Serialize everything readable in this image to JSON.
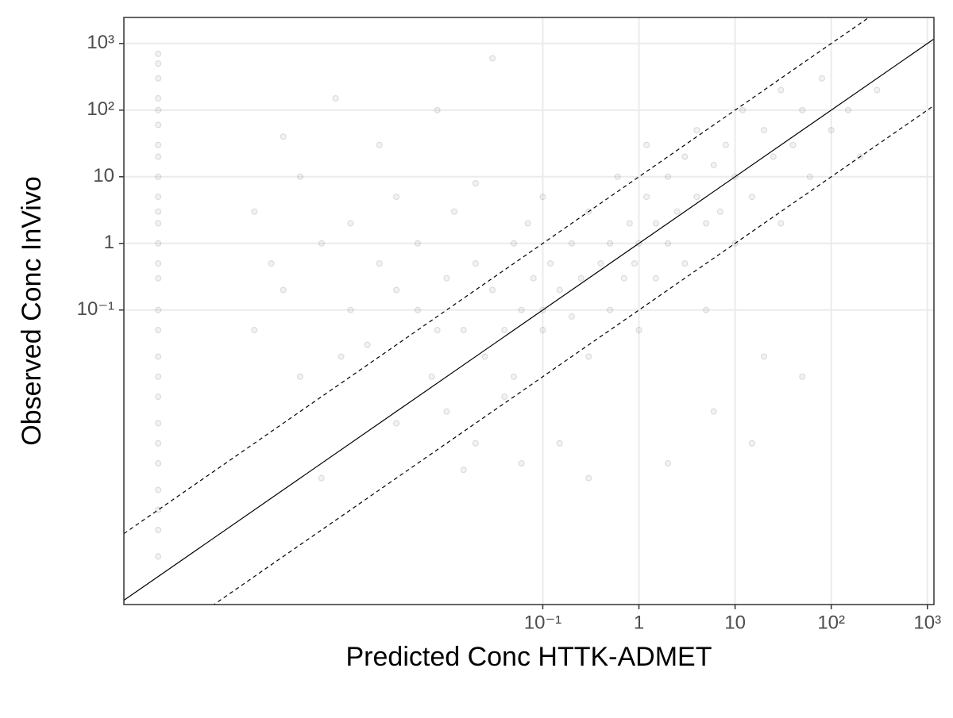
{
  "chart_data": {
    "type": "scatter",
    "x_label": "Predicted Conc HTTK-ADMET",
    "y_label": "Observed Conc InVivo",
    "log_x": true,
    "log_y": true,
    "grid": true,
    "color": "#555555",
    "xlim": [
      4.4e-06,
      1170
    ],
    "ylim": [
      3.8e-06,
      2460
    ],
    "xticks": [
      {
        "value": 0.1,
        "label": "10⁻¹"
      },
      1,
      10,
      {
        "value": 100,
        "label": "10²"
      },
      {
        "value": 1000,
        "label": "10³"
      }
    ],
    "yticks": [
      {
        "value": 0.1,
        "label": "10⁻¹"
      },
      1,
      10,
      {
        "value": 100,
        "label": "10²"
      },
      {
        "value": 1000,
        "label": "10³"
      }
    ],
    "reference_lines": [
      {
        "factor": 1,
        "style": "solid"
      },
      {
        "factor": 10,
        "style": "dashed"
      },
      {
        "factor": 0.1,
        "style": "dashed"
      }
    ],
    "x": [
      1e-05,
      1e-05,
      1e-05,
      1e-05,
      1e-05,
      1e-05,
      1e-05,
      1e-05,
      1e-05,
      1e-05,
      1e-05,
      1e-05,
      1e-05,
      1e-05,
      1e-05,
      1e-05,
      1e-05,
      1e-05,
      1e-05,
      1e-05,
      1e-05,
      1e-05,
      1e-05,
      1e-05,
      1e-05,
      1e-05,
      1e-05,
      0.0001,
      0.0001,
      0.00015,
      0.0002,
      0.0002,
      0.0003,
      0.0003,
      0.0005,
      0.0005,
      0.0007,
      0.001,
      0.001,
      0.0015,
      0.002,
      0.002,
      0.003,
      0.003,
      0.005,
      0.005,
      0.007,
      0.008,
      0.01,
      0.01,
      0.012,
      0.015,
      0.02,
      0.02,
      0.02,
      0.025,
      0.03,
      0.03,
      0.04,
      0.05,
      0.05,
      0.06,
      0.07,
      0.08,
      0.1,
      0.1,
      0.1,
      0.12,
      0.15,
      0.15,
      0.2,
      0.2,
      0.25,
      0.3,
      0.3,
      0.4,
      0.5,
      0.5,
      0.6,
      0.7,
      0.8,
      0.9,
      1,
      1,
      1.2,
      1.2,
      1.5,
      1.5,
      2,
      2,
      2,
      2.5,
      3,
      3,
      4,
      4,
      5,
      5,
      6,
      7,
      8,
      10,
      10,
      12,
      15,
      20,
      20,
      25,
      30,
      30,
      40,
      50,
      60,
      80,
      100,
      150,
      200,
      300,
      0.003,
      0.008,
      0.04,
      0.06,
      0.3,
      6,
      15,
      50,
      0.0008,
      0.015
    ],
    "y": [
      700,
      500,
      300,
      150,
      100,
      60,
      30,
      20,
      10,
      5,
      3,
      2,
      1,
      0.5,
      0.3,
      0.1,
      0.05,
      0.02,
      0.01,
      0.005,
      0.002,
      0.001,
      0.0005,
      0.0002,
      0.0001,
      5e-05,
      2e-05,
      0.05,
      3,
      0.5,
      0.2,
      40,
      10,
      0.01,
      1,
      0.0003,
      150,
      0.1,
      2,
      0.03,
      0.5,
      30,
      0.002,
      5,
      0.1,
      1,
      0.01,
      100,
      0.3,
      0.003,
      3,
      0.05,
      0.001,
      0.5,
      8,
      0.02,
      0.2,
      600,
      0.05,
      0.01,
      1,
      0.1,
      2,
      0.3,
      0.1,
      0.05,
      5,
      0.5,
      0.2,
      0.001,
      1,
      0.08,
      0.3,
      3,
      0.02,
      0.5,
      1,
      0.1,
      10,
      0.3,
      2,
      0.5,
      1,
      0.05,
      30,
      5,
      0.3,
      2,
      10,
      1,
      0.0005,
      3,
      20,
      0.5,
      5,
      50,
      2,
      0.1,
      15,
      3,
      30,
      10,
      1,
      100,
      5,
      50,
      0.02,
      20,
      200,
      2,
      30,
      100,
      10,
      300,
      50,
      100,
      20,
      200,
      0.2,
      0.05,
      0.005,
      0.0005,
      0.0003,
      0.003,
      0.001,
      0.01,
      0.02,
      0.0004
    ]
  }
}
